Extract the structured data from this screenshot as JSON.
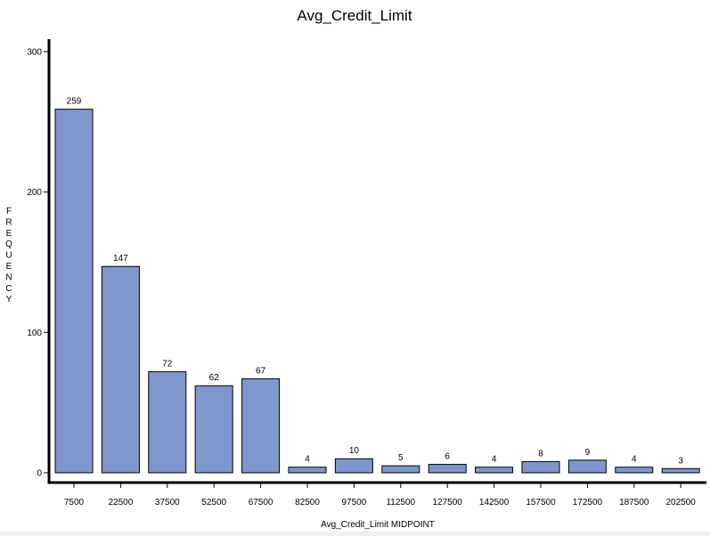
{
  "chart_data": {
    "type": "bar",
    "title": "Avg_Credit_Limit",
    "xlabel": "Avg_Credit_Limit MIDPOINT",
    "ylabel": "FREQUENCY",
    "categories": [
      "7500",
      "22500",
      "37500",
      "52500",
      "67500",
      "82500",
      "97500",
      "112500",
      "127500",
      "142500",
      "157500",
      "172500",
      "187500",
      "202500"
    ],
    "values": [
      259,
      147,
      72,
      62,
      67,
      4,
      10,
      5,
      6,
      4,
      8,
      9,
      4,
      3
    ],
    "ylim": [
      0,
      300
    ],
    "yticks": [
      0,
      100,
      200,
      300
    ],
    "bar_color": "#7f97cd",
    "grid": false,
    "legend": "none"
  }
}
